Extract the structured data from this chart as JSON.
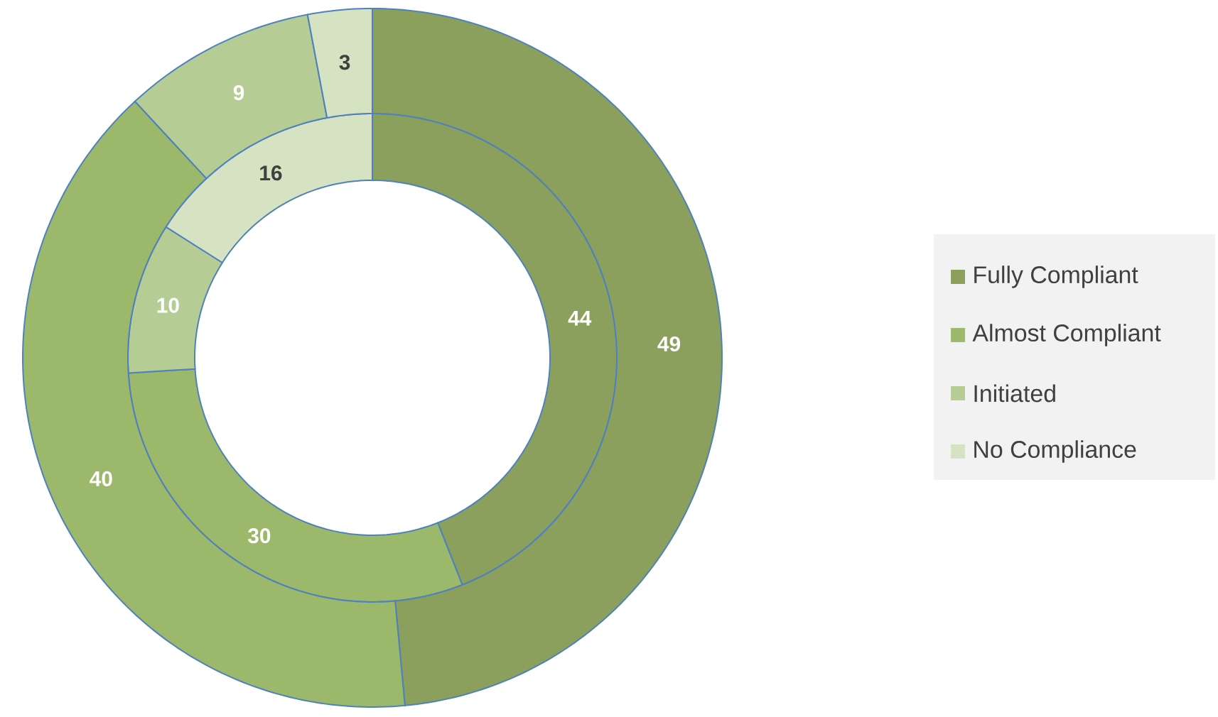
{
  "chart_data": {
    "type": "donut",
    "categories": [
      "Fully Compliant",
      "Almost Compliant",
      "Initiated",
      "No Compliance"
    ],
    "colors": [
      "#8aa05c",
      "#9bb86b",
      "#b6cc95",
      "#d6e3c2"
    ],
    "series": [
      {
        "values": [
          44,
          30,
          10,
          16
        ]
      },
      {
        "values": [
          49,
          40,
          9,
          3
        ]
      }
    ],
    "data_labels": true,
    "legend": "right"
  }
}
